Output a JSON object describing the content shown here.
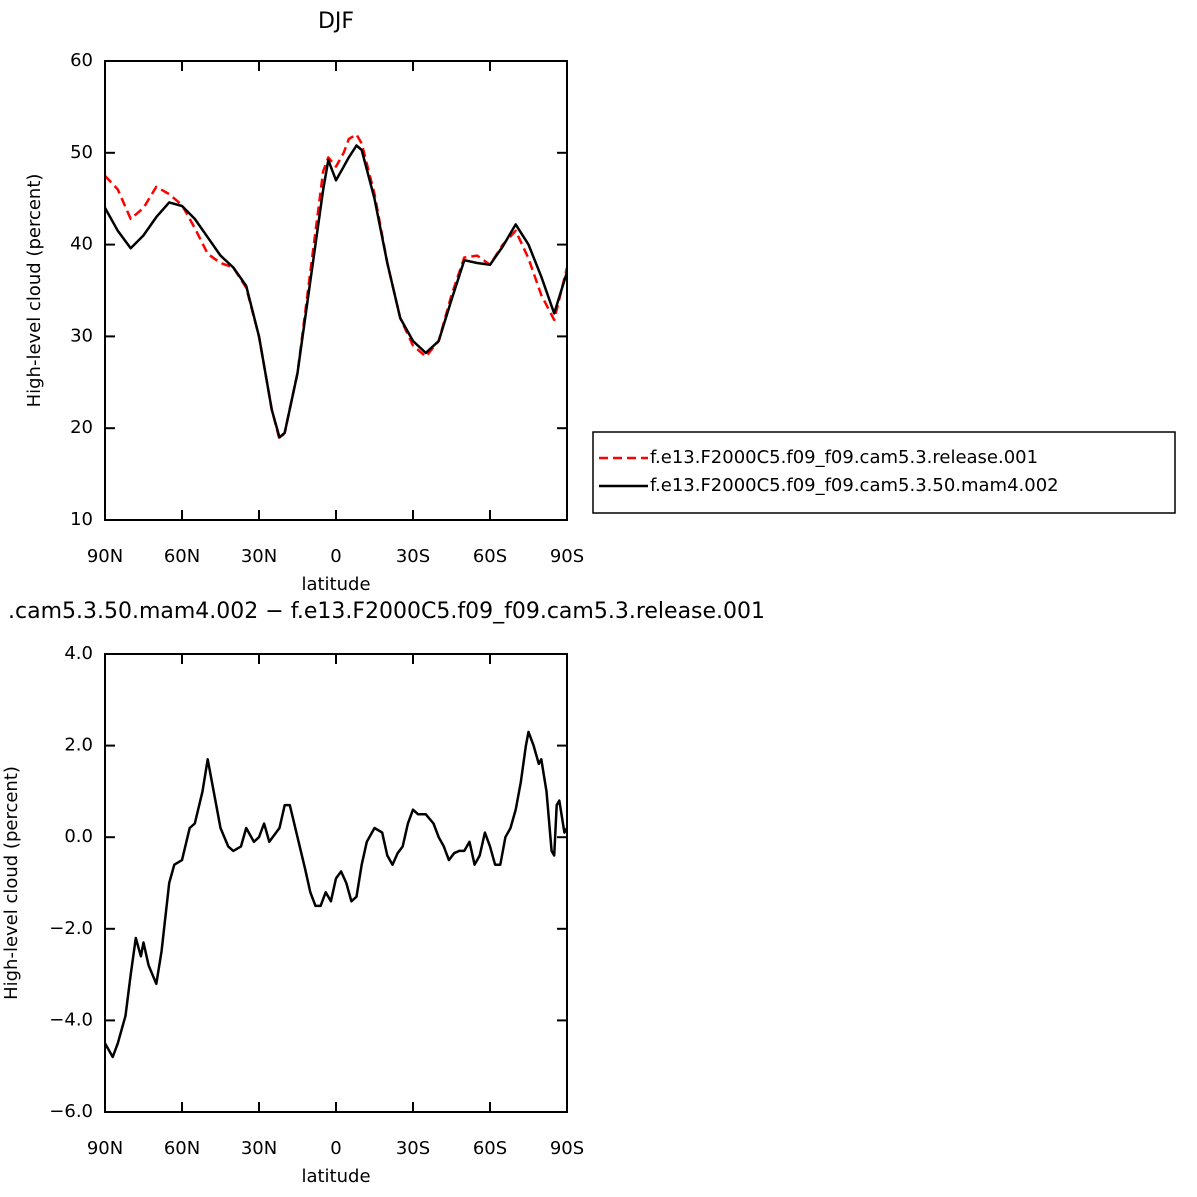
{
  "chart_data": [
    {
      "type": "line",
      "title": "DJF",
      "xlabel": "latitude",
      "ylabel": "High-level cloud (percent)",
      "xlim": [
        90,
        -90
      ],
      "xticks": [
        {
          "value": 90,
          "label": "90N"
        },
        {
          "value": 60,
          "label": "60N"
        },
        {
          "value": 30,
          "label": "30N"
        },
        0,
        {
          "value": -30,
          "label": "30S"
        },
        {
          "value": -60,
          "label": "60S"
        },
        {
          "value": -90,
          "label": "90S"
        }
      ],
      "ylim": [
        10,
        60
      ],
      "yticks": [
        10,
        20,
        30,
        40,
        50,
        60
      ],
      "legend": "right",
      "x": [
        90,
        85,
        80,
        75,
        70,
        65,
        60,
        55,
        50,
        45,
        40,
        35,
        30,
        25,
        22,
        20,
        15,
        10,
        5,
        3,
        0,
        -3,
        -5,
        -8,
        -10,
        -15,
        -20,
        -25,
        -30,
        -35,
        -40,
        -45,
        -50,
        -55,
        -60,
        -65,
        -70,
        -75,
        -80,
        -85,
        -90
      ],
      "series": [
        {
          "name": "f.e13.F2000C5.f09_f09.cam5.3.release.001",
          "color": "#ff0000",
          "linestyle": "dashed",
          "values": [
            47.5,
            46,
            42.8,
            44,
            46.3,
            45.5,
            44.3,
            41.8,
            39,
            38,
            37.5,
            35.3,
            30,
            22,
            18.8,
            19.5,
            26,
            37,
            48,
            49.5,
            48.5,
            50,
            51.5,
            52,
            51,
            45.5,
            38,
            32,
            29,
            27.8,
            29.5,
            34.5,
            38.6,
            38.8,
            37.8,
            40,
            41.5,
            38.5,
            34.5,
            31.8,
            37.5
          ]
        },
        {
          "name": "f.e13.F2000C5.f09_f09.cam5.3.50.mam4.002",
          "color": "#000000",
          "linestyle": "solid",
          "values": [
            44,
            41.5,
            39.6,
            41,
            43,
            44.6,
            44.2,
            42.8,
            40.8,
            38.8,
            37.5,
            35.5,
            30,
            22,
            19,
            19.5,
            26,
            36,
            46,
            49.2,
            47,
            48.5,
            49.5,
            50.8,
            50.3,
            45,
            38,
            32,
            29.5,
            28.2,
            29.5,
            34,
            38.3,
            38,
            37.8,
            39.8,
            42.2,
            40,
            36.5,
            32.5,
            37
          ]
        }
      ]
    },
    {
      "type": "line",
      "title": ".cam5.3.50.mam4.002 − f.e13.F2000C5.f09_f09.cam5.3.release.001",
      "xlabel": "latitude",
      "ylabel": "High-level cloud (percent)",
      "xlim": [
        90,
        -90
      ],
      "xticks": [
        {
          "value": 90,
          "label": "90N"
        },
        {
          "value": 60,
          "label": "60N"
        },
        {
          "value": 30,
          "label": "30N"
        },
        0,
        {
          "value": -30,
          "label": "30S"
        },
        {
          "value": -60,
          "label": "60S"
        },
        {
          "value": -90,
          "label": "90S"
        }
      ],
      "ylim": [
        -6,
        4
      ],
      "yticks": [
        {
          "value": -6,
          "label": "−6.0"
        },
        {
          "value": -4,
          "label": "−4.0"
        },
        {
          "value": -2,
          "label": "−2.0"
        },
        {
          "value": 0,
          "label": "0.0"
        },
        {
          "value": 2,
          "label": "2.0"
        },
        {
          "value": 4,
          "label": "4.0"
        }
      ],
      "x": [
        90,
        87,
        85,
        82,
        80,
        78,
        76,
        75,
        73,
        70,
        68,
        65,
        63,
        60,
        57,
        55,
        52,
        50,
        47,
        45,
        42,
        40,
        37,
        35,
        32,
        30,
        28,
        26,
        22,
        20,
        18,
        15,
        12,
        10,
        8,
        6,
        4,
        2,
        0,
        -2,
        -4,
        -6,
        -8,
        -10,
        -12,
        -15,
        -18,
        -20,
        -22,
        -24,
        -26,
        -28,
        -30,
        -32,
        -35,
        -38,
        -40,
        -42,
        -44,
        -46,
        -48,
        -50,
        -52,
        -54,
        -56,
        -58,
        -60,
        -62,
        -64,
        -66,
        -68,
        -70,
        -72,
        -74,
        -75,
        -77,
        -79,
        -80,
        -82,
        -84,
        -85,
        -86,
        -87,
        -89,
        -90
      ],
      "series": [
        {
          "color": "#000000",
          "linestyle": "solid",
          "values": [
            -4.5,
            -4.8,
            -4.5,
            -3.9,
            -3.0,
            -2.2,
            -2.6,
            -2.3,
            -2.8,
            -3.2,
            -2.5,
            -1.0,
            -0.6,
            -0.5,
            0.2,
            0.3,
            1.0,
            1.7,
            0.8,
            0.2,
            -0.2,
            -0.3,
            -0.2,
            0.2,
            -0.1,
            0.0,
            0.3,
            -0.1,
            0.2,
            0.7,
            0.7,
            0.0,
            -0.7,
            -1.2,
            -1.5,
            -1.5,
            -1.2,
            -1.4,
            -0.9,
            -0.75,
            -1.0,
            -1.4,
            -1.3,
            -0.6,
            -0.1,
            0.2,
            0.1,
            -0.4,
            -0.6,
            -0.35,
            -0.2,
            0.3,
            0.6,
            0.5,
            0.5,
            0.3,
            0.0,
            -0.2,
            -0.5,
            -0.35,
            -0.3,
            -0.3,
            -0.1,
            -0.6,
            -0.4,
            0.1,
            -0.2,
            -0.6,
            -0.6,
            0.0,
            0.2,
            0.6,
            1.2,
            2.0,
            2.3,
            2.0,
            1.6,
            1.7,
            1.0,
            -0.3,
            -0.4,
            0.7,
            0.8,
            0.1,
            0.2
          ]
        }
      ]
    }
  ]
}
